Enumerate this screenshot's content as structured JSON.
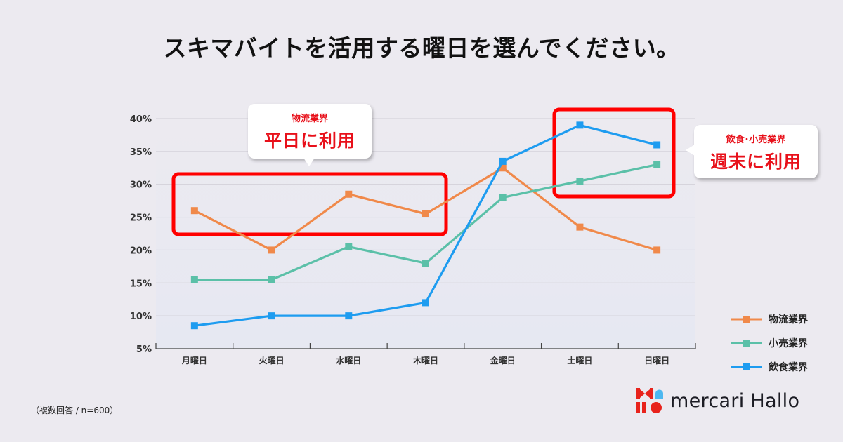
{
  "title": "スキマバイトを活用する曜日を選んでください。",
  "note": "（複数回答 / n=600）",
  "logo": {
    "text": "mercari Hallo",
    "colors": {
      "red": "#E8231C",
      "blue": "#4DB8F0"
    }
  },
  "callouts": [
    {
      "sub": "物流業界",
      "main": "平日に利用"
    },
    {
      "sub": "飲食･小売業界",
      "main": "週末に利用"
    }
  ],
  "legend": [
    {
      "label": "物流業界",
      "color": "#F0894A"
    },
    {
      "label": "小売業界",
      "color": "#5BC0A8"
    },
    {
      "label": "飲食業界",
      "color": "#1E9CF0"
    }
  ],
  "chart_data": {
    "type": "line",
    "title": "スキマバイトを活用する曜日を選んでください。",
    "xlabel": "",
    "ylabel": "",
    "categories": [
      "月曜日",
      "火曜日",
      "水曜日",
      "木曜日",
      "金曜日",
      "土曜日",
      "日曜日"
    ],
    "yticks": [
      "5%",
      "10%",
      "15%",
      "20%",
      "25%",
      "30%",
      "35%",
      "40%"
    ],
    "ylim": [
      5,
      40
    ],
    "grid": true,
    "legend_position": "right-bottom",
    "series": [
      {
        "name": "物流業界",
        "color": "#F0894A",
        "values": [
          26,
          20,
          28.5,
          25.5,
          32.5,
          23.5,
          20
        ]
      },
      {
        "name": "小売業界",
        "color": "#5BC0A8",
        "values": [
          15.5,
          15.5,
          20.5,
          18,
          28,
          30.5,
          33
        ]
      },
      {
        "name": "飲食業界",
        "color": "#1E9CF0",
        "values": [
          8.5,
          10,
          10,
          12,
          33.5,
          39,
          36
        ]
      }
    ],
    "annotations": [
      {
        "text": "物流業界 平日に利用",
        "highlight": "月曜日–木曜日, 22.5%–29.5%",
        "color": "#FF0000"
      },
      {
        "text": "飲食･小売業界 週末に利用",
        "highlight": "土曜日–日曜日, 28.5%–41%",
        "color": "#FF0000"
      }
    ]
  }
}
